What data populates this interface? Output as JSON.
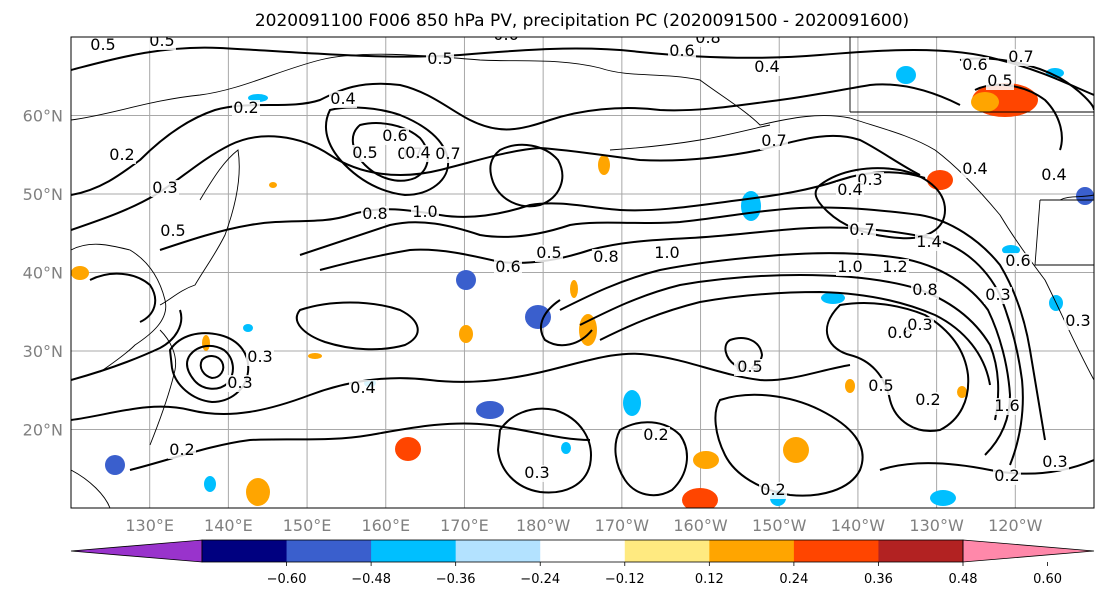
{
  "title": "2020091100 F006 850 hPa PV, precipitation PC (2020091500 - 2020091600)",
  "map": {
    "lat_labels": [
      "60°N",
      "50°N",
      "40°N",
      "30°N",
      "20°N"
    ],
    "lon_labels": [
      "130°E",
      "140°E",
      "150°E",
      "160°E",
      "170°E",
      "180°W",
      "170°W",
      "160°W",
      "150°W",
      "140°W",
      "130°W",
      "120°W"
    ],
    "lon_range": [
      120,
      250
    ],
    "lat_range": [
      10,
      70
    ],
    "gridlines": true,
    "contour_labels": [
      "0.5",
      "0.5",
      "0.5",
      "0.6",
      "0.8",
      "0.4",
      "0.6",
      "0.7",
      "0.7",
      "0.6",
      "0.2",
      "0.4",
      "0.5",
      "0.4",
      "0.7",
      "0.2",
      "0.3",
      "0.5",
      "0.8",
      "1.0",
      "0.5",
      "0.6",
      "0.8",
      "1.0",
      "0.7",
      "0.3",
      "0.4",
      "0.4",
      "0.5",
      "0.6",
      "1.4",
      "1.0",
      "1.2",
      "0.8",
      "0.6",
      "0.7",
      "0.3",
      "0.6",
      "0.3",
      "0.5",
      "0.4",
      "0.3",
      "0.3",
      "0.4",
      "0.5",
      "0.2",
      "1.6",
      "0.2",
      "0.3",
      "0.2",
      "0.3",
      "0.2",
      "0.2",
      "0.3",
      "0.4"
    ]
  },
  "colorbar": {
    "ticks": [
      "−0.60",
      "−0.48",
      "−0.36",
      "−0.24",
      "−0.12",
      "0.12",
      "0.24",
      "0.36",
      "0.48",
      "0.60"
    ],
    "colors": [
      "#9933cc",
      "#000080",
      "#3a5fcd",
      "#00bfff",
      "#b3e2ff",
      "#ffffff",
      "#ffea80",
      "#ffa500",
      "#ff4500",
      "#b22222",
      "#ff88aa"
    ]
  }
}
